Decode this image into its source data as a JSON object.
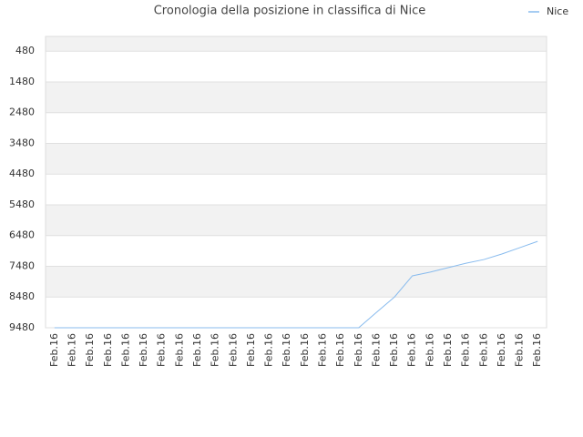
{
  "chart_data": {
    "type": "line",
    "title": "Cronologia della posizione in classifica di Nice",
    "categories": [
      "Feb.16",
      "Feb.16",
      "Feb.16",
      "Feb.16",
      "Feb.16",
      "Feb.16",
      "Feb.16",
      "Feb.16",
      "Feb.16",
      "Feb.16",
      "Feb.16",
      "Feb.16",
      "Feb.16",
      "Feb.16",
      "Feb.16",
      "Feb.16",
      "Feb.16",
      "Feb.16",
      "Feb.16",
      "Feb.16",
      "Feb.16",
      "Feb.16",
      "Feb.16",
      "Feb.16",
      "Feb.16",
      "Feb.16",
      "Feb.16",
      "Feb.16"
    ],
    "series": [
      {
        "name": "Nice",
        "color": "#88bbee",
        "values": [
          9480,
          9480,
          9480,
          9480,
          9480,
          9480,
          9480,
          9480,
          9480,
          9480,
          9480,
          9480,
          9480,
          9480,
          9480,
          9480,
          9480,
          9480,
          8975,
          8480,
          7790,
          7670,
          7525,
          7380,
          7260,
          7080,
          6875,
          6670
        ]
      }
    ],
    "ylim": [
      9480,
      0
    ],
    "yticks": [
      480,
      1480,
      2480,
      3480,
      4480,
      5480,
      6480,
      7480,
      8480,
      9480
    ],
    "grid": true,
    "legend": "top-right"
  }
}
